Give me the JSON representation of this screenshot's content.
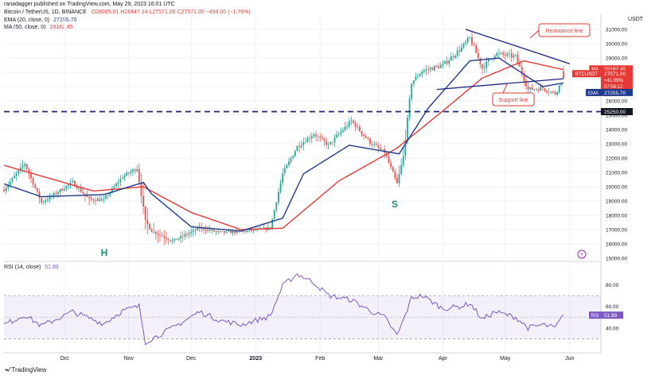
{
  "header": {
    "published": "ranadagger published on TradingView.com, May 29, 2023 16:01 UTC",
    "symbol": "Bitcoin / TetherUS, 1D, BINANCE",
    "ohlc": "O28065.01 H28447.14 L27571.00 C27571.00 −494.00 (−1.76%)",
    "ema_label": "EMA (20, close, 0)",
    "ema_value": "27255.70",
    "ma_label": "MA (50, close, 0)",
    "ma_value": "28182.45",
    "rsi_label": "RSI (14, close)",
    "rsi_value": "51.89"
  },
  "footer": {
    "brand": "TradingView"
  },
  "chart_data": [
    {
      "type": "candlestick",
      "title": "Bitcoin / TetherUS, 1D, BINANCE",
      "currency": "USDT",
      "ylim": [
        15000,
        31500
      ],
      "y_ticks": [
        15000,
        16000,
        17000,
        18000,
        19000,
        20000,
        21000,
        22000,
        23000,
        24000,
        25000,
        26000,
        27000,
        28000,
        29000,
        30000,
        31000
      ],
      "x_ticks": [
        "Oct",
        "Nov",
        "Dec",
        "2023",
        "Feb",
        "Mar",
        "Apr",
        "May",
        "Jun"
      ],
      "x_tick_dates": [
        "2022-10-01",
        "2022-11-01",
        "2022-12-01",
        "2023-01-01",
        "2023-02-01",
        "2023-03-01",
        "2023-04-01",
        "2023-05-01",
        "2023-06-01"
      ],
      "x_range": [
        "2022-09-02",
        "2023-06-16"
      ],
      "anchors": {
        "dates": [
          "2022-09-02",
          "2022-09-12",
          "2022-09-20",
          "2022-10-05",
          "2022-10-13",
          "2022-10-20",
          "2022-10-29",
          "2022-11-05",
          "2022-11-09",
          "2022-11-12",
          "2022-11-22",
          "2022-12-05",
          "2022-12-15",
          "2022-12-25",
          "2023-01-08",
          "2023-01-14",
          "2023-01-21",
          "2023-01-29",
          "2023-02-05",
          "2023-02-16",
          "2023-02-25",
          "2023-03-04",
          "2023-03-10",
          "2023-03-13",
          "2023-03-17",
          "2023-03-22",
          "2023-04-01",
          "2023-04-10",
          "2023-04-14",
          "2023-04-20",
          "2023-04-26",
          "2023-05-06",
          "2023-05-12",
          "2023-05-19",
          "2023-05-25",
          "2023-05-29"
        ],
        "close": [
          19800,
          21600,
          18900,
          20300,
          19100,
          19100,
          20700,
          21300,
          17600,
          16900,
          16200,
          17100,
          16800,
          16850,
          17100,
          20900,
          22800,
          23700,
          22900,
          24600,
          23100,
          22400,
          20200,
          22100,
          27300,
          28100,
          28500,
          29700,
          30400,
          28300,
          29300,
          29100,
          26800,
          26900,
          26500,
          27571
        ],
        "high_pad": [
          300,
          500,
          300,
          300,
          400,
          200,
          300,
          400,
          1300,
          700,
          400,
          400,
          300,
          200,
          300,
          400,
          400,
          300,
          300,
          500,
          300,
          300,
          400,
          1000,
          300,
          300,
          300,
          400,
          400,
          400,
          500,
          300,
          400,
          300,
          300,
          876
        ],
        "low_pad": [
          300,
          400,
          400,
          300,
          500,
          300,
          300,
          400,
          900,
          600,
          500,
          300,
          300,
          200,
          200,
          300,
          500,
          400,
          400,
          400,
          400,
          400,
          300,
          400,
          400,
          400,
          300,
          300,
          400,
          500,
          500,
          300,
          400,
          300,
          300,
          0
        ]
      },
      "ema20_anchors": {
        "dates": [
          "2022-09-02",
          "2022-09-20",
          "2022-10-20",
          "2022-11-08",
          "2022-11-12",
          "2022-12-01",
          "2022-12-25",
          "2023-01-14",
          "2023-01-24",
          "2023-02-15",
          "2023-03-11",
          "2023-03-25",
          "2023-04-14",
          "2023-04-28",
          "2023-05-19",
          "2023-05-29"
        ],
        "values": [
          20200,
          19300,
          19450,
          20300,
          19500,
          17200,
          16900,
          17800,
          20900,
          22900,
          22300,
          25500,
          28800,
          29000,
          27000,
          27255.7
        ]
      },
      "ma50_anchors": {
        "dates": [
          "2022-09-02",
          "2022-10-15",
          "2022-11-08",
          "2022-12-01",
          "2022-12-25",
          "2023-01-14",
          "2023-02-10",
          "2023-03-10",
          "2023-04-01",
          "2023-04-20",
          "2023-05-10",
          "2023-05-29"
        ],
        "values": [
          21500,
          19700,
          20000,
          18200,
          17000,
          17100,
          20400,
          22700,
          25300,
          27600,
          28800,
          28182.45
        ]
      },
      "price_labels": [
        {
          "tag": "MA",
          "value": "28182.45",
          "color": "#e53935"
        },
        {
          "tag": "BTCUSDT",
          "value": "27571.00",
          "extra1": "+41.99%",
          "extra2": "07:58:12",
          "color": "#e53935"
        },
        {
          "tag": "EMA",
          "value": "27255.70",
          "color": "#1e3a8a"
        },
        {
          "tag": "",
          "value": "25250.00",
          "color": "#131722"
        }
      ],
      "annotations": [
        {
          "text": "Resistance line",
          "kind": "resistance"
        },
        {
          "text": "Support line",
          "kind": "support"
        },
        {
          "text": "H",
          "kind": "pattern"
        },
        {
          "text": "S",
          "kind": "pattern"
        }
      ],
      "levels": {
        "dashed_support": 25250,
        "resistance_from": [
          "2023-04-12",
          31000
        ],
        "resistance_to": [
          "2023-06-01",
          28600
        ],
        "neckline_from": [
          "2023-03-29",
          26800
        ],
        "neckline_to": [
          "2023-05-29",
          27550
        ]
      }
    },
    {
      "type": "line",
      "title": "RSI (14, close)",
      "ylim": [
        20,
        95
      ],
      "y_ticks": [
        40,
        60,
        80
      ],
      "band": [
        30,
        70
      ],
      "current": 51.89,
      "anchors": {
        "dates": [
          "2022-09-02",
          "2022-09-12",
          "2022-09-20",
          "2022-10-05",
          "2022-10-20",
          "2022-10-29",
          "2022-11-06",
          "2022-11-09",
          "2022-11-22",
          "2022-12-05",
          "2022-12-15",
          "2022-12-25",
          "2023-01-08",
          "2023-01-14",
          "2023-01-21",
          "2023-01-29",
          "2023-02-05",
          "2023-02-16",
          "2023-02-25",
          "2023-03-04",
          "2023-03-10",
          "2023-03-13",
          "2023-03-17",
          "2023-03-22",
          "2023-04-01",
          "2023-04-10",
          "2023-04-14",
          "2023-04-20",
          "2023-04-26",
          "2023-05-06",
          "2023-05-12",
          "2023-05-19",
          "2023-05-25",
          "2023-05-29"
        ],
        "values": [
          43,
          52,
          42,
          55,
          44,
          56,
          60,
          27,
          40,
          55,
          47,
          43,
          51,
          79,
          90,
          82,
          70,
          66,
          56,
          50,
          33,
          47,
          68,
          70,
          58,
          60,
          63,
          48,
          55,
          50,
          40,
          43,
          40,
          51.89
        ]
      }
    }
  ]
}
